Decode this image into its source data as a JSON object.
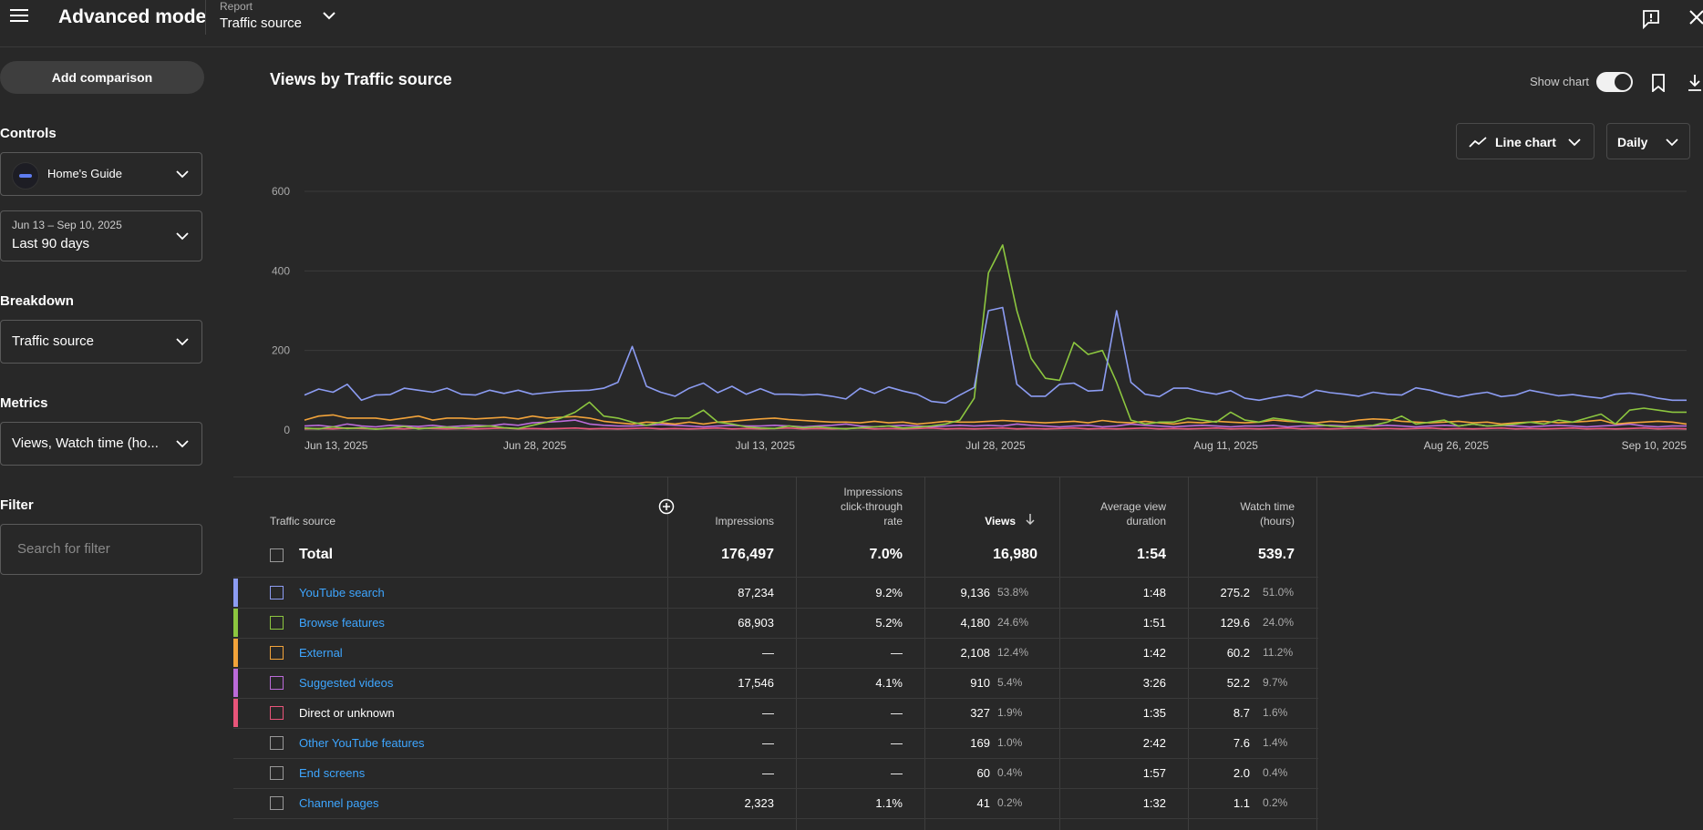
{
  "header": {
    "title": "Advanced mode",
    "report_label": "Report",
    "report_value": "Traffic source"
  },
  "sidebar": {
    "add_comparison": "Add comparison",
    "controls_heading": "Controls",
    "channel_name": "Home's Guide",
    "date_range": "Jun 13 – Sep 10, 2025",
    "date_preset": "Last 90 days",
    "breakdown_heading": "Breakdown",
    "breakdown_value": "Traffic source",
    "metrics_heading": "Metrics",
    "metrics_value": "Views, Watch time (ho...",
    "filter_heading": "Filter",
    "filter_placeholder": "Search for filter"
  },
  "chart_controls": {
    "title": "Views by Traffic source",
    "show_chart_label": "Show chart",
    "show_chart_on": true,
    "chart_type": "Line chart",
    "granularity": "Daily"
  },
  "chart_data": {
    "type": "line",
    "ylim": [
      0,
      600
    ],
    "yticks": [
      "0",
      "200",
      "400",
      "600"
    ],
    "xtick_labels": [
      "Jun 13, 2025",
      "Jun 28, 2025",
      "Jul 13, 2025",
      "Jul 28, 2025",
      "Aug 11, 2025",
      "Aug 26, 2025",
      "Sep 10, 2025"
    ],
    "grid": true,
    "series": [
      {
        "name": "YouTube search",
        "color": "#8c9cf2",
        "values": [
          88,
          103,
          95,
          115,
          75,
          88,
          89,
          105,
          100,
          95,
          105,
          90,
          88,
          100,
          92,
          100,
          90,
          94,
          97,
          99,
          100,
          105,
          120,
          210,
          110,
          95,
          85,
          105,
          118,
          94,
          110,
          90,
          104,
          90,
          90,
          88,
          90,
          85,
          78,
          105,
          92,
          108,
          98,
          90,
          72,
          68,
          88,
          107,
          300,
          308,
          115,
          85,
          85,
          115,
          118,
          98,
          100,
          300,
          120,
          90,
          84,
          105,
          105,
          96,
          90,
          99,
          80,
          75,
          82,
          88,
          82,
          100,
          94,
          90,
          85,
          95,
          90,
          88,
          106,
          100,
          90,
          83,
          90,
          95,
          84,
          88,
          100,
          93,
          86,
          89,
          84,
          80,
          90,
          93,
          88,
          80,
          75,
          75
        ]
      },
      {
        "name": "Browse features",
        "color": "#8cc63f",
        "values": [
          5,
          3,
          8,
          4,
          6,
          2,
          5,
          9,
          3,
          6,
          7,
          5,
          8,
          10,
          6,
          4,
          12,
          20,
          30,
          45,
          70,
          35,
          30,
          20,
          12,
          20,
          30,
          30,
          50,
          20,
          15,
          8,
          5,
          4,
          10,
          6,
          8,
          5,
          3,
          6,
          8,
          10,
          5,
          7,
          10,
          15,
          25,
          80,
          395,
          465,
          300,
          180,
          130,
          125,
          220,
          190,
          200,
          120,
          25,
          15,
          20,
          20,
          30,
          25,
          20,
          45,
          25,
          20,
          30,
          25,
          20,
          15,
          10,
          8,
          10,
          12,
          20,
          35,
          15,
          20,
          25,
          10,
          15,
          10,
          12,
          15,
          20,
          15,
          25,
          20,
          30,
          40,
          15,
          50,
          55,
          50,
          45,
          45
        ]
      },
      {
        "name": "External",
        "color": "#f2a33a",
        "values": [
          25,
          35,
          38,
          30,
          30,
          30,
          25,
          30,
          35,
          25,
          30,
          30,
          28,
          30,
          32,
          28,
          35,
          30,
          32,
          34,
          30,
          22,
          18,
          15,
          20,
          18,
          15,
          20,
          15,
          20,
          22,
          25,
          28,
          30,
          26,
          24,
          22,
          20,
          20,
          18,
          22,
          18,
          20,
          15,
          18,
          22,
          20,
          20,
          22,
          24,
          22,
          20,
          18,
          20,
          22,
          18,
          24,
          20,
          18,
          22,
          18,
          15,
          20,
          18,
          22,
          20,
          18,
          20,
          25,
          22,
          20,
          18,
          22,
          20,
          25,
          28,
          26,
          22,
          20,
          18,
          20,
          22,
          18,
          20,
          15,
          18,
          20,
          22,
          18,
          20,
          22,
          25,
          15,
          18,
          20,
          22,
          20,
          15
        ]
      },
      {
        "name": "Suggested videos",
        "color": "#bb6bd9",
        "values": [
          10,
          12,
          8,
          15,
          10,
          8,
          12,
          10,
          9,
          12,
          8,
          10,
          12,
          10,
          15,
          12,
          18,
          20,
          22,
          25,
          15,
          12,
          10,
          10,
          12,
          14,
          12,
          10,
          8,
          10,
          12,
          10,
          10,
          12,
          10,
          8,
          10,
          12,
          15,
          10,
          8,
          10,
          12,
          10,
          8,
          10,
          12,
          10,
          12,
          10,
          15,
          12,
          10,
          8,
          10,
          12,
          8,
          10,
          15,
          12,
          10,
          8,
          10,
          12,
          10,
          8,
          10,
          10,
          12,
          8,
          10,
          10,
          12,
          10,
          8,
          10,
          12,
          10,
          8,
          10,
          12,
          10,
          15,
          10,
          12,
          10,
          8,
          10,
          12,
          10,
          8,
          10,
          12,
          15,
          10,
          8,
          10,
          10
        ]
      },
      {
        "name": "Direct or unknown",
        "color": "#e8557a",
        "values": [
          3,
          4,
          3,
          5,
          4,
          3,
          4,
          3,
          5,
          4,
          3,
          4,
          3,
          4,
          5,
          3,
          4,
          3,
          4,
          5,
          3,
          4,
          3,
          4,
          5,
          3,
          4,
          3,
          4,
          5,
          3,
          4,
          3,
          4,
          5,
          3,
          4,
          3,
          4,
          5,
          3,
          4,
          3,
          4,
          5,
          3,
          4,
          3,
          4,
          5,
          3,
          4,
          3,
          4,
          5,
          3,
          4,
          3,
          4,
          5,
          3,
          4,
          3,
          4,
          5,
          3,
          4,
          3,
          4,
          5,
          3,
          4,
          3,
          4,
          5,
          3,
          4,
          3,
          4,
          5,
          3,
          4,
          3,
          4,
          5,
          3,
          4,
          3,
          4,
          5,
          3,
          4,
          3,
          4,
          5,
          3,
          4,
          3
        ]
      }
    ]
  },
  "table": {
    "headers": {
      "source": "Traffic source",
      "impressions": "Impressions",
      "ctr_line1": "Impressions",
      "ctr_line2": "click-through",
      "ctr_line3": "rate",
      "views": "Views",
      "avd_line1": "Average view",
      "avd_line2": "duration",
      "watch_line1": "Watch time",
      "watch_line2": "(hours)"
    },
    "total": {
      "label": "Total",
      "impressions": "176,497",
      "ctr": "7.0%",
      "views": "16,980",
      "avd": "1:54",
      "watch": "539.7"
    },
    "rows": [
      {
        "name": "YouTube search",
        "color": "#8c9cf2",
        "link": true,
        "impressions": "87,234",
        "ctr": "9.2%",
        "views": "9,136",
        "views_pct": "53.8%",
        "avd": "1:48",
        "watch": "275.2",
        "watch_pct": "51.0%"
      },
      {
        "name": "Browse features",
        "color": "#8cc63f",
        "link": true,
        "impressions": "68,903",
        "ctr": "5.2%",
        "views": "4,180",
        "views_pct": "24.6%",
        "avd": "1:51",
        "watch": "129.6",
        "watch_pct": "24.0%"
      },
      {
        "name": "External",
        "color": "#f2a33a",
        "link": true,
        "impressions": "—",
        "ctr": "—",
        "views": "2,108",
        "views_pct": "12.4%",
        "avd": "1:42",
        "watch": "60.2",
        "watch_pct": "11.2%"
      },
      {
        "name": "Suggested videos",
        "color": "#bb6bd9",
        "link": true,
        "impressions": "17,546",
        "ctr": "4.1%",
        "views": "910",
        "views_pct": "5.4%",
        "avd": "3:26",
        "watch": "52.2",
        "watch_pct": "9.7%"
      },
      {
        "name": "Direct or unknown",
        "color": "#e8557a",
        "link": false,
        "impressions": "—",
        "ctr": "—",
        "views": "327",
        "views_pct": "1.9%",
        "avd": "1:35",
        "watch": "8.7",
        "watch_pct": "1.6%"
      },
      {
        "name": "Other YouTube features",
        "color": "",
        "link": true,
        "impressions": "—",
        "ctr": "—",
        "views": "169",
        "views_pct": "1.0%",
        "avd": "2:42",
        "watch": "7.6",
        "watch_pct": "1.4%"
      },
      {
        "name": "End screens",
        "color": "",
        "link": true,
        "impressions": "—",
        "ctr": "—",
        "views": "60",
        "views_pct": "0.4%",
        "avd": "1:57",
        "watch": "2.0",
        "watch_pct": "0.4%"
      },
      {
        "name": "Channel pages",
        "color": "",
        "link": true,
        "impressions": "2,323",
        "ctr": "1.1%",
        "views": "41",
        "views_pct": "0.2%",
        "avd": "1:32",
        "watch": "1.1",
        "watch_pct": "0.2%"
      }
    ]
  },
  "colors": {
    "link": "#3ea6ff",
    "background": "#282828",
    "grid": "#3a3a3a"
  },
  "icons": [
    "hamburger-menu-icon",
    "chevron-down-icon",
    "feedback-icon",
    "close-icon",
    "bookmark-icon",
    "download-icon",
    "line-chart-icon",
    "sort-down-icon",
    "add-circle-icon"
  ]
}
